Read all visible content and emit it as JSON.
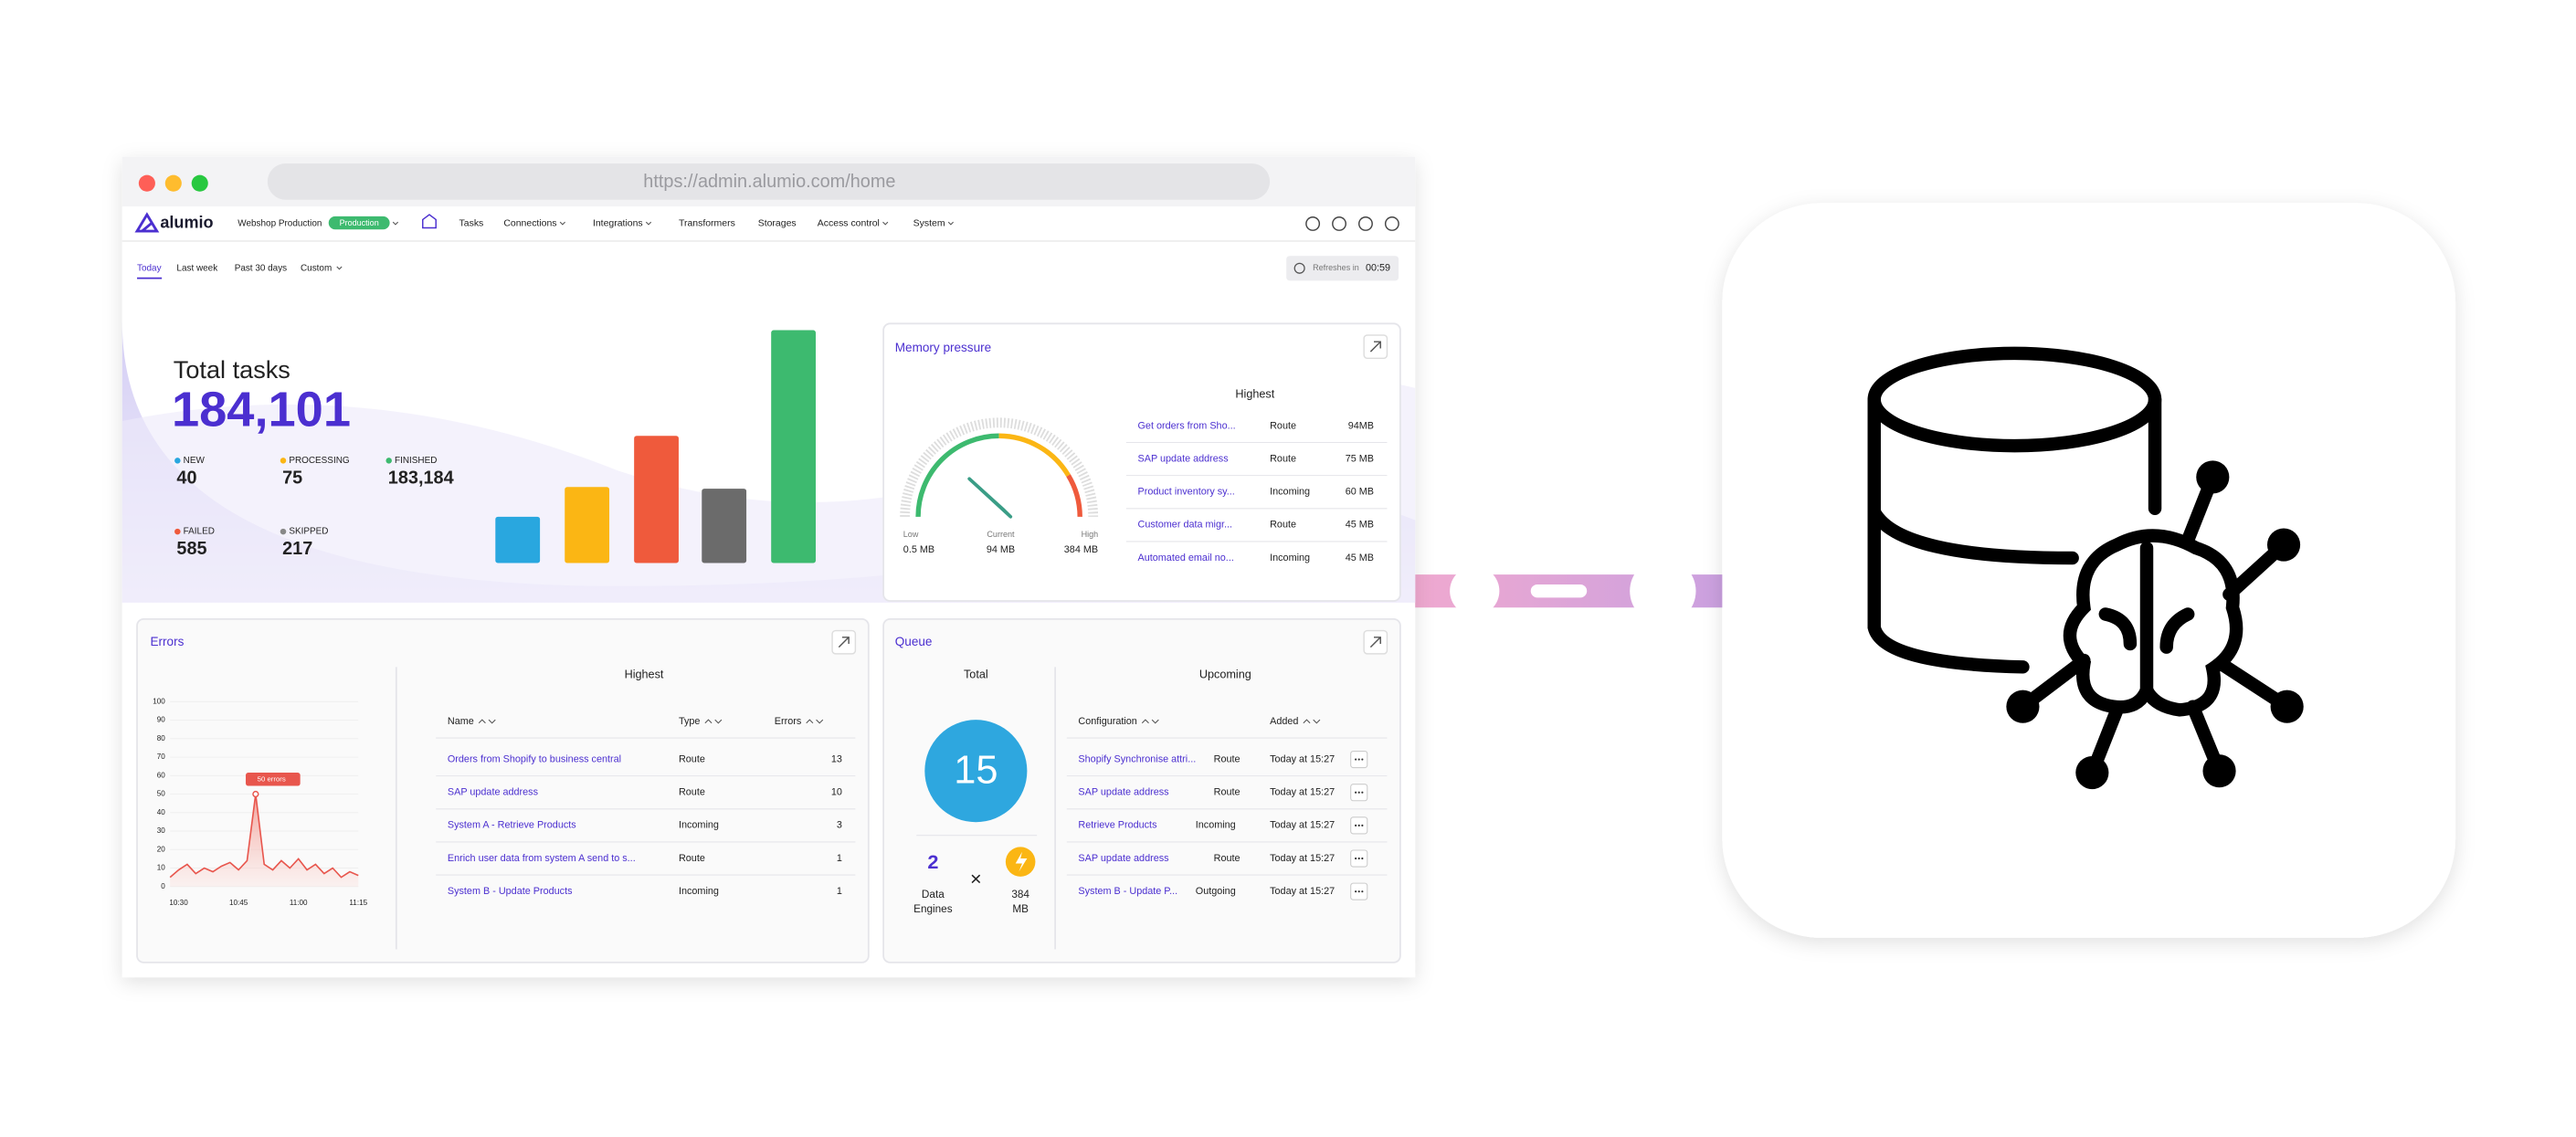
{
  "browser": {
    "url": "https://admin.alumio.com/home"
  },
  "nav": {
    "logo": "alumio",
    "environment": "Webshop Production",
    "badge": "Production",
    "items": [
      "Tasks",
      "Connections",
      "Integrations",
      "Transformers",
      "Storages",
      "Access control",
      "System"
    ]
  },
  "filters": {
    "tabs": [
      "Today",
      "Last week",
      "Past 30 days",
      "Custom"
    ],
    "refresh_label": "Refreshes in",
    "refresh_time": "00:59"
  },
  "total_tasks": {
    "title": "Total tasks",
    "value": "184,101",
    "statuses": [
      {
        "label": "NEW",
        "value": "40"
      },
      {
        "label": "PROCESSING",
        "value": "75"
      },
      {
        "label": "FINISHED",
        "value": "183,184"
      },
      {
        "label": "FAILED",
        "value": "585"
      },
      {
        "label": "SKIPPED",
        "value": "217"
      }
    ]
  },
  "memory": {
    "title": "Memory pressure",
    "gauge": {
      "low_label": "Low",
      "low": "0.5 MB",
      "current_label": "Current",
      "current": "94 MB",
      "high_label": "High",
      "high": "384 MB"
    },
    "table_title": "Highest",
    "rows": [
      [
        "Get orders from Sho...",
        "Route",
        "94MB"
      ],
      [
        "SAP update address",
        "Route",
        "75 MB"
      ],
      [
        "Product inventory sy...",
        "Incoming",
        "60 MB"
      ],
      [
        "Customer data migr...",
        "Route",
        "45 MB"
      ],
      [
        "Automated email no...",
        "Incoming",
        "45 MB"
      ]
    ]
  },
  "errors": {
    "title": "Errors",
    "table_title": "Highest",
    "columns": [
      "Name",
      "Type",
      "Errors"
    ],
    "rows": [
      [
        "Orders from Shopify to business central",
        "Route",
        "13"
      ],
      [
        "SAP update address",
        "Route",
        "10"
      ],
      [
        "System A - Retrieve Products",
        "Incoming",
        "3"
      ],
      [
        "Enrich user data from system A send to s...",
        "Route",
        "1"
      ],
      [
        "System B - Update Products",
        "Incoming",
        "1"
      ]
    ]
  },
  "chart_data": {
    "type": "line",
    "color": "#e8564d",
    "grid": true,
    "categories": [
      null,
      "10:30",
      null,
      null,
      null,
      null,
      null,
      null,
      "10:45",
      null,
      null,
      null,
      null,
      null,
      null,
      "11:00",
      null,
      null,
      null,
      null,
      null,
      null,
      "11:15"
    ],
    "values": [
      5,
      9,
      12,
      7,
      10,
      8,
      11,
      13,
      9,
      14,
      50,
      12,
      9,
      14,
      10,
      15,
      9,
      12,
      7,
      10,
      5,
      8,
      6
    ],
    "ylim": [
      0,
      100
    ],
    "yticks": [
      0,
      10,
      20,
      30,
      40,
      50,
      60,
      70,
      80,
      90,
      100
    ],
    "annotation": "50 errors"
  },
  "queue": {
    "title": "Queue",
    "total_title": "Total",
    "total": "15",
    "engines": "2",
    "engines_label": [
      "Data",
      "Engines"
    ],
    "times": "×",
    "memory": [
      "384",
      "MB"
    ],
    "upcoming_title": "Upcoming",
    "columns": [
      "Configuration",
      "Added"
    ],
    "rows": [
      [
        "Shopify Synchronise attri...",
        "Route",
        "Today at 15:27"
      ],
      [
        "SAP update address",
        "Route",
        "Today at 15:27"
      ],
      [
        "Retrieve Products",
        "Incoming",
        "Today at 15:27"
      ],
      [
        "SAP update address",
        "Route",
        "Today at 15:27"
      ],
      [
        "System B - Update P...",
        "Outgoing",
        "Today at 15:27"
      ]
    ]
  }
}
